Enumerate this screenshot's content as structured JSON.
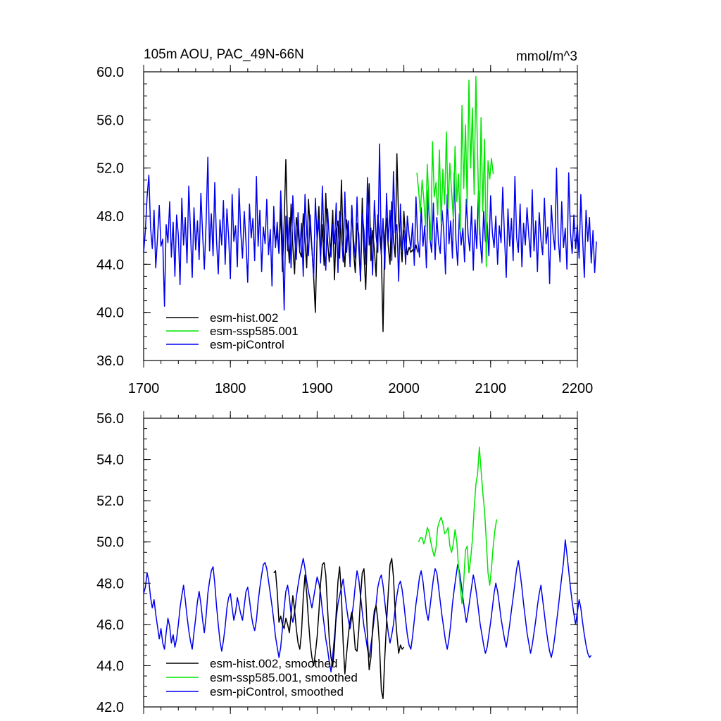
{
  "chart_data": [
    {
      "type": "line",
      "title_left": "105m AOU, PAC_49N-66N",
      "title_right": "mmol/m^3",
      "xlim": [
        1700,
        2200
      ],
      "ylim": [
        36,
        60
      ],
      "xticks": [
        1700,
        1800,
        1900,
        2000,
        2100,
        2200
      ],
      "xtick_labels": [
        "1700",
        "1800",
        "1900",
        "2000",
        "2100",
        "2200"
      ],
      "yticks": [
        36,
        40,
        44,
        48,
        52,
        56,
        60
      ],
      "ytick_labels": [
        "36.0",
        "40.0",
        "44.0",
        "48.0",
        "52.0",
        "56.0",
        "60.0"
      ],
      "legend_position": "bottom-left",
      "series": [
        {
          "name": "esm-hist.002",
          "color": "#000000",
          "x_start": 1850,
          "x_step": 2,
          "values": [
            47.2,
            45.8,
            46.6,
            44.9,
            48.6,
            43.4,
            47.5,
            52.7,
            46.3,
            44.1,
            49.0,
            45.5,
            43.2,
            47.9,
            46.8,
            45.0,
            44.6,
            48.2,
            46.1,
            43.7,
            49.4,
            47.0,
            45.3,
            42.9,
            40.0,
            46.4,
            48.8,
            44.7,
            47.3,
            43.9,
            49.9,
            46.0,
            44.2,
            45.8,
            48.5,
            42.7,
            46.9,
            47.6,
            44.5,
            51.0,
            45.6,
            43.8,
            47.7,
            46.2,
            44.0,
            48.9,
            45.1,
            43.3,
            47.4,
            46.5,
            42.6,
            49.5,
            44.9,
            41.9,
            47.0,
            50.7,
            44.3,
            46.8,
            45.2,
            43.0,
            48.1,
            46.6,
            44.8,
            38.4,
            46.3,
            47.8,
            45.5,
            44.0,
            49.2,
            46.1,
            44.6,
            53.2,
            47.6,
            45.9,
            44.2,
            48.4,
            46.0,
            44.8,
            45.4,
            45.0,
            45.2,
            44.9,
            45.6,
            45.0
          ]
        },
        {
          "name": "esm-ssp585.001",
          "color": "#00e600",
          "x_start": 2015,
          "x_step": 2,
          "values": [
            51.6,
            50.2,
            48.3,
            51.0,
            49.4,
            47.1,
            52.3,
            48.8,
            46.0,
            54.2,
            49.6,
            50.8,
            48.1,
            53.5,
            47.4,
            51.9,
            49.0,
            55.0,
            48.6,
            52.4,
            50.0,
            47.8,
            53.8,
            49.2,
            51.5,
            46.7,
            57.2,
            50.3,
            55.6,
            48.9,
            59.3,
            52.0,
            57.0,
            49.8,
            59.6,
            53.1,
            46.5,
            56.2,
            48.4,
            54.4,
            43.8,
            52.6,
            51.1,
            52.8,
            51.5
          ]
        },
        {
          "name": "esm-piControl",
          "color": "#0000ee",
          "x_start": 1700,
          "x_step": 2,
          "values": [
            45.0,
            46.8,
            49.6,
            51.4,
            47.0,
            45.3,
            48.5,
            43.7,
            46.2,
            48.9,
            45.5,
            46.1,
            40.5,
            47.3,
            45.8,
            49.2,
            44.6,
            47.5,
            43.0,
            48.1,
            46.4,
            42.3,
            49.5,
            45.6,
            47.9,
            44.1,
            50.5,
            46.8,
            42.9,
            48.7,
            45.2,
            47.6,
            44.4,
            49.9,
            46.5,
            43.6,
            47.4,
            52.9,
            45.1,
            48.2,
            44.7,
            50.8,
            46.0,
            43.2,
            47.7,
            45.6,
            49.3,
            44.0,
            48.6,
            46.3,
            42.8,
            49.8,
            45.9,
            47.2,
            43.8,
            50.3,
            46.6,
            44.5,
            48.4,
            45.8,
            42.5,
            49.0,
            46.2,
            47.8,
            44.3,
            51.3,
            45.5,
            48.5,
            43.4,
            47.1,
            45.7,
            49.4,
            44.8,
            46.9,
            42.2,
            48.8,
            45.4,
            47.5,
            44.9,
            50.1,
            46.3,
            40.2,
            48.0,
            45.1,
            47.9,
            43.7,
            49.7,
            46.4,
            44.4,
            48.3,
            45.2,
            47.4,
            43.0,
            49.8,
            46.6,
            44.7,
            48.1,
            45.3,
            42.9,
            49.5,
            46.0,
            47.7,
            44.1,
            50.5,
            45.8,
            43.5,
            48.6,
            46.2,
            44.6,
            47.3,
            45.7,
            49.1,
            43.3,
            48.4,
            46.5,
            44.2,
            50.0,
            45.0,
            47.6,
            43.8,
            48.9,
            46.1,
            44.5,
            49.6,
            45.4,
            42.7,
            48.2,
            46.8,
            44.0,
            51.2,
            45.6,
            47.0,
            43.1,
            49.3,
            46.3,
            45.0,
            54.0,
            44.8,
            47.8,
            43.6,
            49.9,
            45.9,
            48.5,
            44.3,
            51.7,
            46.6,
            47.3,
            42.6,
            49.0,
            45.2,
            46.8,
            44.0,
            48.0,
            46.4,
            45.3,
            47.4,
            43.9,
            49.6,
            46.0,
            44.6,
            48.7,
            45.5,
            47.2,
            43.7,
            50.2,
            46.2,
            45.0,
            49.1,
            44.4,
            47.9,
            45.8,
            44.9,
            48.5,
            46.7,
            43.2,
            49.8,
            45.7,
            47.6,
            44.5,
            51.6,
            46.1,
            43.9,
            48.2,
            45.6,
            47.0,
            44.2,
            49.4,
            46.5,
            45.1,
            48.8,
            43.5,
            47.7,
            45.3,
            50.1,
            46.0,
            44.1,
            48.4,
            45.9,
            47.5,
            44.7,
            49.7,
            46.6,
            45.4,
            48.0,
            44.0,
            47.2,
            45.8,
            50.4,
            46.3,
            42.9,
            48.6,
            45.5,
            47.8,
            44.3,
            51.3,
            46.2,
            45.0,
            49.0,
            43.8,
            47.4,
            45.6,
            48.7,
            46.4,
            44.6,
            50.2,
            45.1,
            47.6,
            43.4,
            48.3,
            46.0,
            44.8,
            49.5,
            45.7,
            47.1,
            42.4,
            48.9,
            46.5,
            45.2,
            52.0,
            46.1,
            44.2,
            49.2,
            45.4,
            47.0,
            43.6,
            51.6,
            46.7,
            44.9,
            48.1,
            45.3,
            47.3,
            44.5,
            49.8,
            46.2,
            42.9,
            48.5,
            45.9,
            47.9,
            44.1,
            46.8,
            43.3,
            45.9
          ]
        }
      ]
    },
    {
      "type": "line",
      "xlim": [
        1700,
        2200
      ],
      "ylim": [
        42,
        56
      ],
      "xticks": [
        1700,
        1800,
        1900,
        2000,
        2100,
        2200
      ],
      "yticks": [
        42,
        44,
        46,
        48,
        50,
        52,
        54,
        56
      ],
      "ytick_labels": [
        "42.0",
        "44.0",
        "46.0",
        "48.0",
        "50.0",
        "52.0",
        "54.0",
        "56.0"
      ],
      "legend_position": "bottom-left",
      "series": [
        {
          "name": "esm-hist.002, smoothed",
          "color": "#000000",
          "x_start": 1850,
          "x_step": 2,
          "values": [
            48.5,
            48.6,
            47.6,
            46.1,
            46.4,
            46.0,
            45.8,
            46.3,
            46.0,
            45.6,
            46.5,
            47.4,
            46.7,
            45.8,
            45.1,
            44.8,
            45.6,
            47.3,
            48.4,
            47.5,
            46.2,
            45.1,
            44.4,
            44.0,
            44.6,
            45.4,
            46.6,
            48.0,
            48.9,
            49.0,
            48.4,
            46.8,
            45.3,
            44.4,
            44.0,
            44.9,
            46.6,
            48.1,
            48.8,
            47.4,
            45.1,
            43.6,
            44.6,
            45.5,
            46.2,
            46.6,
            45.9,
            44.8,
            44.7,
            45.7,
            47.3,
            48.5,
            48.7,
            47.4,
            45.4,
            43.8,
            44.4,
            45.8,
            46.7,
            46.9,
            46.2,
            44.9,
            42.8,
            42.4,
            44.4,
            46.1,
            47.5,
            48.9,
            49.2,
            48.3,
            46.6,
            45.5,
            44.6,
            45.0,
            44.8,
            44.9
          ]
        },
        {
          "name": "esm-ssp585.001, smoothed",
          "color": "#00e600",
          "x_start": 2017,
          "x_step": 2,
          "values": [
            50.0,
            50.2,
            50.2,
            49.9,
            50.2,
            50.7,
            50.5,
            50.0,
            49.6,
            49.3,
            49.7,
            50.7,
            51.0,
            51.2,
            50.9,
            50.4,
            50.5,
            50.7,
            49.8,
            49.5,
            49.9,
            50.6,
            50.0,
            48.8,
            47.8,
            47.0,
            48.1,
            49.6,
            49.8,
            48.5,
            49.2,
            50.1,
            51.6,
            52.8,
            53.3,
            54.6,
            53.5,
            52.4,
            51.5,
            50.1,
            48.5,
            47.9,
            48.7,
            49.8,
            50.6,
            51.1
          ]
        }
      ]
    }
  ],
  "bottom_piControl": {
    "name": "esm-piControl, smoothed",
    "color": "#0000ee",
    "x_start": 1700,
    "x_step": 2,
    "values": [
      47.5,
      47.8,
      48.5,
      48.1,
      47.3,
      46.8,
      47.2,
      46.5,
      45.9,
      45.3,
      45.8,
      45.1,
      44.8,
      45.6,
      46.3,
      45.9,
      45.1,
      45.5,
      44.9,
      45.3,
      46.0,
      46.8,
      47.4,
      47.9,
      47.2,
      46.4,
      45.7,
      45.2,
      44.8,
      45.6,
      46.3,
      47.1,
      47.6,
      47.0,
      46.2,
      45.6,
      46.4,
      47.5,
      48.1,
      48.6,
      48.8,
      48.0,
      46.9,
      46.0,
      45.2,
      44.7,
      45.2,
      45.9,
      46.8,
      47.3,
      47.5,
      46.8,
      46.2,
      46.6,
      47.3,
      46.9,
      46.5,
      46.2,
      46.9,
      47.6,
      47.8,
      47.2,
      46.5,
      46.0,
      45.7,
      46.2,
      47.1,
      47.8,
      48.4,
      48.9,
      49.0,
      48.7,
      48.1,
      47.5,
      46.9,
      46.2,
      45.4,
      44.9,
      44.4,
      44.9,
      45.8,
      46.8,
      47.6,
      47.9,
      47.3,
      46.5,
      46.1,
      46.6,
      47.3,
      47.9,
      48.4,
      48.8,
      49.2,
      48.7,
      48.1,
      47.6,
      47.2,
      46.8,
      47.3,
      47.8,
      48.3,
      48.0,
      47.5,
      46.7,
      46.0,
      45.3,
      44.8,
      44.2,
      43.7,
      44.5,
      45.4,
      46.3,
      47.0,
      47.4,
      47.8,
      48.2,
      47.5,
      46.8,
      46.2,
      45.8,
      46.4,
      47.0,
      47.9,
      48.6,
      48.2,
      47.4,
      46.6,
      45.9,
      45.4,
      44.8,
      44.4,
      45.0,
      45.6,
      46.4,
      47.0,
      47.8,
      48.2,
      48.4,
      47.9,
      47.1,
      46.3,
      45.6,
      45.1,
      45.5,
      46.0,
      46.8,
      47.4,
      47.9,
      48.1,
      47.7,
      47.0,
      46.2,
      45.5,
      45.0,
      44.8,
      45.4,
      46.2,
      47.0,
      47.6,
      48.3,
      48.6,
      48.1,
      47.3,
      46.6,
      46.2,
      46.8,
      47.5,
      48.2,
      48.7,
      48.5,
      47.8,
      47.1,
      46.4,
      45.8,
      45.2,
      44.8,
      45.3,
      46.0,
      47.0,
      47.7,
      48.3,
      48.9,
      48.6,
      48.0,
      47.3,
      46.7,
      46.1,
      46.6,
      47.2,
      47.8,
      48.4,
      48.0,
      47.4,
      46.7,
      46.0,
      45.5,
      45.0,
      44.6,
      44.9,
      45.5,
      46.1,
      46.8,
      47.5,
      48.0,
      47.6,
      47.0,
      46.3,
      45.8,
      45.3,
      44.9,
      45.4,
      46.0,
      46.7,
      47.3,
      48.0,
      48.7,
      49.1,
      48.5,
      47.8,
      47.0,
      46.3,
      45.6,
      45.1,
      44.6,
      45.0,
      45.6,
      46.2,
      46.9,
      47.5,
      47.9,
      47.2,
      46.5,
      45.8,
      45.2,
      44.7,
      44.4,
      44.8,
      45.4,
      46.1,
      46.8,
      47.6,
      48.3,
      49.0,
      50.1,
      49.4,
      48.6,
      47.8,
      47.1,
      46.5,
      46.0,
      46.6,
      47.2,
      46.8,
      46.1,
      45.5,
      45.0,
      44.6,
      44.4,
      44.5
    ]
  },
  "legend_top": {
    "labels": [
      "esm-hist.002",
      "esm-ssp585.001",
      "esm-piControl"
    ]
  },
  "legend_bottom": {
    "labels": [
      "esm-hist.002, smoothed",
      "esm-ssp585.001, smoothed",
      "esm-piControl, smoothed"
    ]
  }
}
